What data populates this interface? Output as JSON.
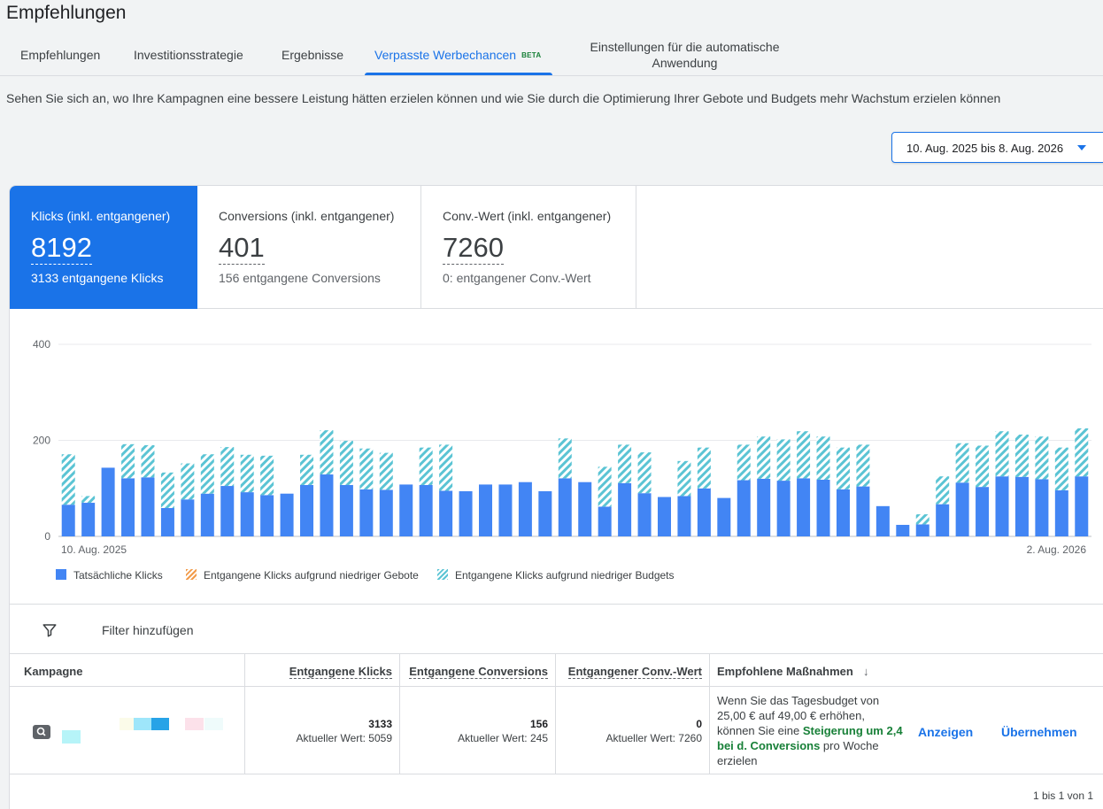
{
  "page": {
    "title": "Empfehlungen",
    "description": "Sehen Sie sich an, wo Ihre Kampagnen eine bessere Leistung hätten erzielen können und wie Sie durch die Optimierung Ihrer Gebote und Budgets mehr Wachstum erzielen können"
  },
  "tabs": [
    {
      "label": "Empfehlungen"
    },
    {
      "label": "Investitionsstrategie"
    },
    {
      "label": "Ergebnisse"
    },
    {
      "label": "Verpasste Werbechancen",
      "badge": "BETA"
    },
    {
      "label_line1": "Einstellungen für die automatische",
      "label_line2": "Anwendung"
    }
  ],
  "date_range": "10. Aug. 2025 bis 8. Aug. 2026",
  "metrics": [
    {
      "label": "Klicks (inkl. entgangener)",
      "value": "8192",
      "sub": "3133 entgangene Klicks"
    },
    {
      "label": "Conversions (inkl. entgangener)",
      "value": "401",
      "sub": "156 entgangene Conversions"
    },
    {
      "label": "Conv.-Wert (inkl. entgangener)",
      "value": "7260",
      "sub": "0: entgangener Conv.-Wert"
    }
  ],
  "colors": {
    "accent": "#1a73e8",
    "actual": "#4285f4",
    "budget_hatch": "#5bc4d4",
    "gebote_hatch": "#f29b4a",
    "positive": "#188038"
  },
  "chart_data": {
    "type": "bar",
    "stacked": true,
    "ylim": [
      0,
      400
    ],
    "yticks": [
      "0",
      "200",
      "400"
    ],
    "x_start_label": "10. Aug. 2025",
    "x_end_label": "2. Aug. 2026",
    "grid": true,
    "legend_placement": "bottom-left",
    "series": [
      {
        "name": "Tatsächliche Klicks",
        "values": [
          66,
          70,
          143,
          121,
          123,
          59,
          77,
          89,
          105,
          92,
          86,
          89,
          107,
          129,
          107,
          98,
          97,
          108,
          107,
          95,
          94,
          108,
          108,
          113,
          94,
          121,
          113,
          62,
          111,
          90,
          82,
          84,
          100,
          80,
          117,
          120,
          116,
          121,
          118,
          98,
          104,
          63,
          24,
          25,
          67,
          112,
          103,
          125,
          124,
          119,
          96,
          125
        ]
      },
      {
        "name": "Entgangene Klicks aufgrund niedriger Gebote",
        "values": [
          0,
          0,
          0,
          0,
          0,
          0,
          0,
          0,
          0,
          0,
          0,
          0,
          0,
          0,
          0,
          0,
          0,
          0,
          0,
          0,
          0,
          0,
          0,
          0,
          0,
          0,
          0,
          0,
          0,
          0,
          0,
          0,
          0,
          0,
          0,
          0,
          0,
          0,
          0,
          0,
          0,
          0,
          0,
          0,
          0,
          0,
          0,
          0,
          0,
          0,
          0,
          0
        ]
      },
      {
        "name": "Entgangene Klicks aufgrund niedriger Budgets",
        "values": [
          105,
          14,
          0,
          71,
          67,
          74,
          75,
          82,
          81,
          78,
          82,
          0,
          63,
          92,
          92,
          85,
          77,
          0,
          78,
          96,
          0,
          0,
          0,
          0,
          0,
          83,
          0,
          83,
          80,
          85,
          0,
          73,
          85,
          0,
          74,
          88,
          86,
          98,
          90,
          87,
          87,
          0,
          0,
          21,
          58,
          82,
          86,
          94,
          88,
          89,
          89,
          100
        ]
      }
    ]
  },
  "filter": {
    "label": "Filter hinzufügen"
  },
  "table": {
    "headers": {
      "campaign": "Kampagne",
      "lost_clicks": "Entgangene Klicks",
      "lost_conversions": "Entgangene Conversions",
      "lost_value": "Entgangener Conv.-Wert",
      "actions": "Empfohlene Maßnahmen",
      "sort_arrow": "↓"
    },
    "rows": [
      {
        "lost_clicks": "3133",
        "lost_clicks_current": "Aktueller Wert: 5059",
        "lost_conversions": "156",
        "lost_conversions_current": "Aktueller Wert: 245",
        "lost_value": "0",
        "lost_value_current": "Aktueller Wert: 7260",
        "rec_part1": "Wenn Sie das Tagesbudget von 25,00 € auf 49,00 € erhöhen, können Sie eine ",
        "rec_highlight": "Steigerung um 2,4 bei d. Conversions",
        "rec_part2": " pro Woche erzielen",
        "action_show": "Anzeigen",
        "action_apply": "Übernehmen"
      }
    ]
  },
  "pagination": "1 bis 1 von 1"
}
